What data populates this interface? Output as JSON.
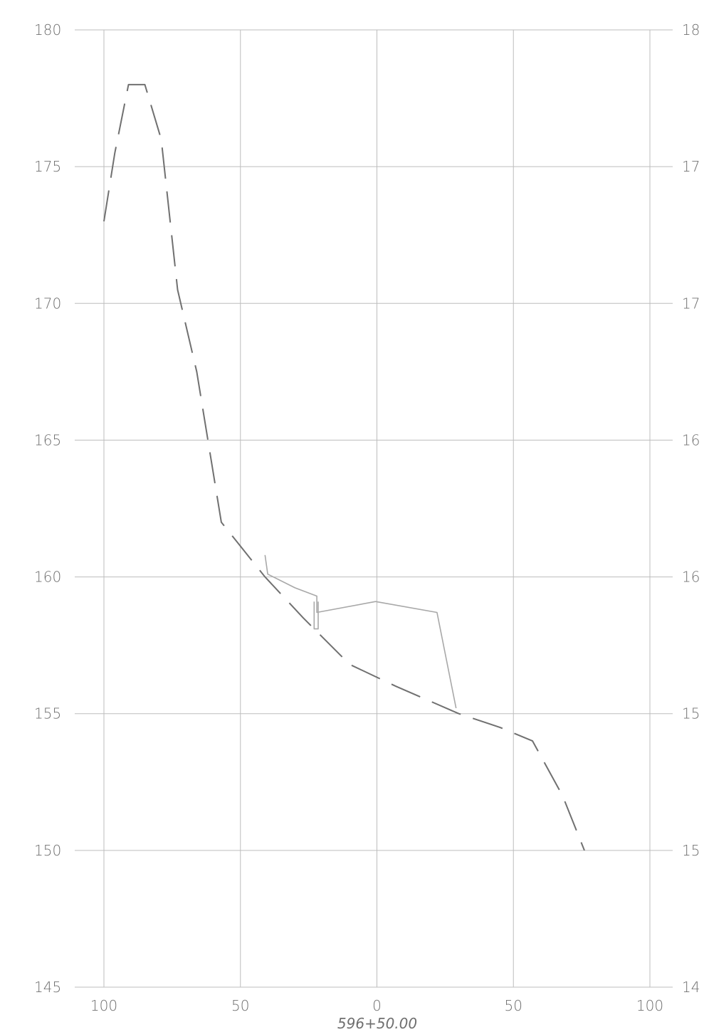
{
  "chart_data": {
    "type": "line",
    "title": "",
    "xlabel": "596+50.00",
    "ylabel": "",
    "xlim": [
      -100,
      100
    ],
    "ylim": [
      145,
      180
    ],
    "grid": true,
    "x_ticks": [
      -100,
      -50,
      0,
      50,
      100
    ],
    "x_tick_labels": [
      "100",
      "50",
      "0",
      "50",
      "100"
    ],
    "y_ticks": [
      145,
      150,
      155,
      160,
      165,
      170,
      175,
      180
    ],
    "y_tick_labels_left": [
      "145",
      "150",
      "155",
      "160",
      "165",
      "170",
      "175",
      "180"
    ],
    "y_tick_labels_right": [
      "14",
      "15",
      "15",
      "16",
      "16",
      "17",
      "17",
      "18"
    ],
    "series": [
      {
        "style": "dashed",
        "color": "#707070",
        "points": [
          [
            -100,
            173
          ],
          [
            -96,
            175.5
          ],
          [
            -91,
            178
          ],
          [
            -85,
            178
          ],
          [
            -79,
            176
          ],
          [
            -73,
            170.5
          ],
          [
            -66,
            167.5
          ],
          [
            -57,
            162
          ],
          [
            -41,
            160
          ],
          [
            -27,
            158.5
          ],
          [
            -10,
            156.8
          ],
          [
            7,
            156
          ],
          [
            30,
            155
          ],
          [
            45,
            154.5
          ],
          [
            57,
            154
          ],
          [
            68,
            152
          ],
          [
            76,
            150
          ]
        ]
      },
      {
        "style": "solid",
        "color": "#a8a8a8",
        "points": [
          [
            -41,
            160.8
          ],
          [
            -40,
            160.1
          ],
          [
            -30,
            159.6
          ],
          [
            -22,
            159.3
          ],
          [
            -22,
            158.7
          ],
          [
            -0.5,
            159.1
          ],
          [
            22,
            158.7
          ],
          [
            29,
            155.2
          ]
        ]
      },
      {
        "style": "solid",
        "color": "#a8a8a8",
        "points": [
          [
            -23,
            159.1
          ],
          [
            -23,
            158.1
          ],
          [
            -21.5,
            158.1
          ],
          [
            -21.5,
            159.1
          ]
        ]
      }
    ]
  }
}
